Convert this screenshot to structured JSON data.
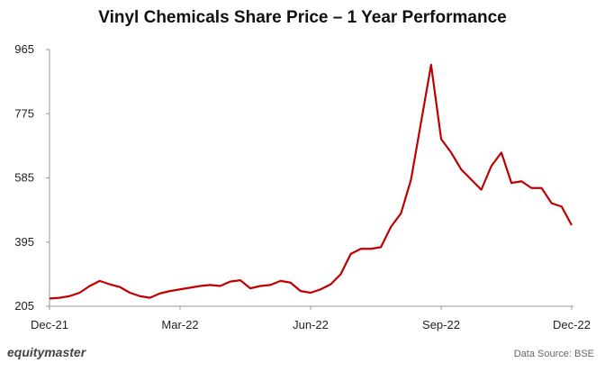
{
  "chart_data": {
    "type": "line",
    "title": "Vinyl Chemicals Share Price – 1 Year Performance",
    "categories": [
      "Dec-21",
      null,
      null,
      null,
      null,
      null,
      null,
      null,
      null,
      null,
      null,
      null,
      null,
      "Mar-22",
      null,
      null,
      null,
      null,
      null,
      null,
      null,
      null,
      null,
      null,
      null,
      null,
      "Jun-22",
      null,
      null,
      null,
      null,
      null,
      null,
      null,
      null,
      null,
      null,
      null,
      null,
      "Sep-22",
      null,
      null,
      null,
      null,
      null,
      null,
      null,
      null,
      null,
      null,
      null,
      null,
      "Dec-22"
    ],
    "series": [
      {
        "name": "Vinyl Chemicals",
        "color": "#c00000",
        "values": [
          228,
          230,
          235,
          245,
          265,
          280,
          270,
          262,
          245,
          235,
          230,
          243,
          250,
          255,
          260,
          265,
          268,
          265,
          278,
          282,
          258,
          265,
          268,
          280,
          275,
          250,
          245,
          255,
          270,
          300,
          360,
          375,
          375,
          380,
          440,
          480,
          580,
          750,
          920,
          700,
          660,
          610,
          580,
          550,
          620,
          660,
          570,
          575,
          555,
          555,
          510,
          500,
          445
        ]
      }
    ],
    "ylim": [
      205,
      965
    ],
    "yticks": [
      205,
      395,
      585,
      775,
      965
    ],
    "grid": false,
    "source": "Data Source: BSE",
    "brand": "equitymaster"
  }
}
